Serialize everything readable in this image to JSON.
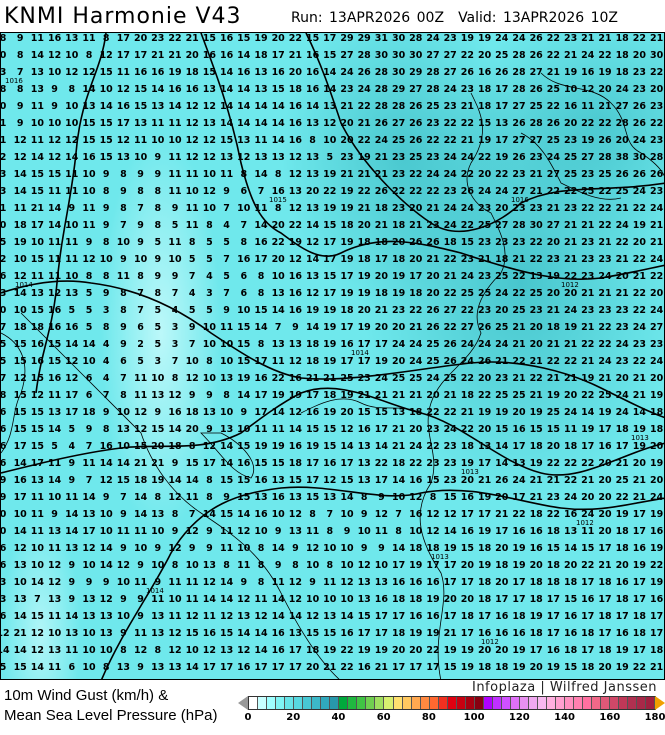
{
  "header": {
    "title": "KNMI Harmonie V43",
    "run": "Run: 13APR2026 00Z",
    "valid": "Valid: 13APR2026 10Z"
  },
  "map": {
    "field": "10m wind gust",
    "gust_rows": [
      "8 9 11 16 13 11 8 17 20 23 22 21 15 16 15 19 20 22 15 17 29 29 31 30 28 24 23 19 19 24 24 26 22 23 21 21 18 22 21",
      "0 8 14 12 10 8 12 17 17 21 21 20 16 16 14 18 17 21 16 15 27 28 30 30 30 27 27 22 20 25 28 26 22 21 24 22 18 20 30",
      "3 7 13 10 12 12 15 11 16 16 19 18 15 14 16 13 16 20 16 14 24 26 28 30 29 28 27 26 16 26 28 27 21 19 16 19 18 23 22",
      "8 8 13 9 8 14 10 12 15 14 16 16 13 14 14 13 15 18 16 14 23 24 28 29 27 28 24 23 18 17 28 26 25 10 12 20 24 23 20",
      "0 9 11 9 10 13 14 16 15 13 14 12 12 14 14 14 14 16 14 13 21 22 28 28 26 25 23 21 18 17 27 25 22 16 11 21 27 26 23",
      "1 9 10 10 10 15 15 17 13 11 11 12 13 14 14 14 14 16 13 12 20 21 26 27 26 23 22 22 15 13 26 28 26 20 22 22 28 26 22",
      "1 12 11 12 12 15 15 12 11 10 10 12 12 15 13 11 14 16 8 10 20 22 24 25 26 22 22 21 19 17 27 27 25 23 19 26 20 24 23",
      "2 12 14 12 14 16 15 13 10 9 11 12 12 13 12 13 13 12 13 5 23 19 21 23 25 23 24 24 22 19 26 23 24 25 27 28 38 30 28",
      "3 14 15 15 11 10 9 8 9 9 11 11 10 11 8 14 8 12 13 19 21 21 21 23 22 24 24 22 20 22 23 21 27 25 23 25 26 26 26",
      "3 14 15 11 11 10 8 9 8 8 11 10 12 9 6 7 16 13 20 22 19 22 26 22 22 22 23 26 24 24 27 21 22 22 25 22 25 24 23",
      "1 11 21 14 9 11 9 8 7 8 9 11 10 7 10 11 8 12 13 19 19 21 18 23 20 21 24 24 23 20 23 23 21 23 22 22 21 22 24",
      "0 18 17 14 10 11 9 7 9 8 5 11 8 4 7 14 20 22 14 15 18 20 21 18 21 23 24 22 25 27 28 30 27 21 21 22 24 19 21",
      "5 19 10 11 11 9 8 10 9 5 11 8 5 5 8 16 22 19 12 17 19 18 18 20 26 26 18 15 23 23 23 22 20 21 23 21 22 20 21",
      "2 10 15 11 11 12 10 9 10 9 10 5 5 7 16 17 20 12 14 17 19 18 17 18 20 21 22 23 21 18 21 22 23 21 23 23 21 22 24",
      "6 12 11 11 10 8 8 11 8 9 9 7 4 5 6 8 10 16 13 15 17 19 20 19 17 20 21 24 23 25 22 13 19 22 23 24 20 21 22",
      "3 14 13 12 13 5 9 8 7 8 7 4 3 7 6 8 13 16 12 17 19 19 18 19 18 20 22 25 25 24 22 25 20 20 21 21 21 22 20",
      "0 10 15 16 5 5 3 8 7 5 4 5 5 9 10 15 14 16 19 19 18 20 21 23 22 26 27 22 23 20 25 23 21 24 23 23 23 22 24",
      "7 18 18 16 16 5 8 9 6 5 3 9 10 11 15 14 7 9 14 19 17 19 20 20 21 26 22 27 26 25 21 20 18 19 21 22 23 24 27",
      "5 15 16 15 14 14 4 9 2 5 3 7 10 10 15 8 13 13 18 19 16 17 17 24 24 25 26 24 24 24 21 20 21 21 22 22 24 23 23",
      "5 15 16 15 12 10 4 6 5 3 7 10 8 10 15 17 11 12 18 19 17 17 19 20 24 25 26 24 26 21 22 21 22 22 21 24 23 22 24",
      "7 12 15 16 12 6 4 7 11 10 8 12 10 13 19 16 22 16 21 21 25 23 24 25 25 24 25 22 20 23 21 22 21 21 19 21 20 21 20",
      "8 15 12 11 17 6 7 8 11 13 12 9 9 8 14 17 19 19 17 18 19 21 21 21 21 20 21 18 22 25 25 21 19 20 22 25 24 21 19",
      "6 15 15 13 17 18 9 10 12 9 16 18 13 10 9 17 14 12 16 19 20 15 15 13 18 22 22 21 19 19 20 19 25 24 14 19 24 14 18",
      "6 15 15 14 5 9 8 13 12 15 14 20 9 13 10 11 11 14 15 15 12 16 17 21 20 23 24 22 20 15 16 15 15 11 19 17 18 19 18",
      "6 17 15 5 4 7 16 10 15 20 18 8 12 14 15 19 19 16 19 15 14 13 14 21 24 22 23 18 13 14 17 18 20 18 17 16 17 19 20",
      "6 14 17 11 9 11 14 14 21 21 9 15 17 14 16 15 15 18 17 16 17 13 22 18 22 23 23 19 17 14 13 19 22 22 22 20 21 20 19",
      "9 16 13 14 9 7 12 15 18 19 14 14 8 15 15 16 13 15 17 12 15 13 17 14 16 15 23 20 21 26 24 21 21 22 21 20 25 21 20",
      "9 17 11 10 11 14 9 7 14 8 12 11 8 9 15 13 16 13 15 13 14 8 9 10 12 8 15 16 19 20 17 21 23 24 20 20 22 21 24",
      "0 10 11 9 14 13 10 9 14 13 8 7 14 15 14 16 10 12 8 7 10 9 12 7 16 12 12 17 17 21 22 18 22 16 24 20 19 17 19",
      "0 14 11 13 14 17 10 11 11 10 9 12 9 11 12 10 9 13 11 8 9 10 11 8 10 12 14 16 19 17 16 16 18 13 11 20 18 17 16",
      "6 12 10 11 13 12 14 9 10 9 12 9 9 11 10 8 14 9 12 10 10 9 9 14 18 18 19 15 18 20 19 16 15 14 15 17 18 16 19",
      "6 13 10 12 9 10 14 12 9 10 8 10 13 8 11 8 9 8 10 8 10 12 10 17 19 17 17 20 19 18 19 20 18 20 22 21 20 19 22",
      "3 10 14 12 9 9 9 10 11 9 11 11 12 14 9 8 11 12 9 11 12 13 13 16 16 16 17 17 18 20 17 18 18 18 17 18 16 17 19",
      "3 13 7 13 9 13 12 9 9 11 10 11 14 14 12 11 14 12 10 10 10 13 16 18 18 19 20 20 18 17 17 18 17 15 16 17 18 17 16",
      "6 14 15 11 14 13 13 10 9 13 11 12 11 12 13 12 14 14 12 13 14 15 17 17 16 16 17 18 17 16 18 19 17 16 17 18 17 18 17",
      "12 21 12 10 13 10 13 9 11 13 12 15 16 15 14 14 16 13 15 15 16 17 17 18 19 19 21 17 16 16 16 18 17 16 18 17 16 18 17",
      "14 14 12 13 11 10 10 8 12 8 12 10 12 13 12 14 16 17 18 19 22 19 19 20 20 22 19 19 20 20 19 17 16 18 17 18 19 17 18",
      "5 15 14 11 6 10 8 13 9 13 13 14 17 17 16 17 17 17 20 21 22 16 21 17 17 17 15 19 18 18 19 20 19 15 18 20 19 22 21"
    ],
    "isobar_labels": [
      "1015",
      "1016",
      "1016",
      "1014",
      "1014",
      "1013",
      "1013",
      "1012",
      "1012",
      "1012",
      "1014",
      "1013"
    ],
    "watermark": "Infoplaza | Wilfred Janssen"
  },
  "legend": {
    "title_line1": "10m Wind Gust (km/h) &",
    "title_line2": "Mean Sea Level Pressure (hPa)",
    "ticks": [
      "0",
      "20",
      "40",
      "60",
      "80",
      "100",
      "120",
      "140",
      "160",
      "180"
    ],
    "min": 0,
    "max": 180,
    "colors": [
      "#ffffff",
      "#c8ffff",
      "#a0ffff",
      "#80f4f4",
      "#68e4e8",
      "#58d8e0",
      "#48c8d4",
      "#3cb8c8",
      "#30a8bc",
      "#2898ac",
      "#00a83c",
      "#20b840",
      "#40c444",
      "#70d050",
      "#a0e060",
      "#d8f070",
      "#ffe070",
      "#ffc860",
      "#ffa850",
      "#ff8840",
      "#ff6830",
      "#f03020",
      "#e00010",
      "#c80010",
      "#a80010",
      "#880010",
      "#b000ff",
      "#c030ff",
      "#d050ff",
      "#e070f8",
      "#e890f0",
      "#f0a8f0",
      "#f8b8f0",
      "#ffb0e0",
      "#ffa0d0",
      "#ff90c0",
      "#ff80b0",
      "#ff70a0",
      "#f06888",
      "#e05878",
      "#d04868",
      "#c03858",
      "#b03050",
      "#a82848",
      "#a02040"
    ],
    "under_color": "#999999",
    "over_color": "#f0a000"
  }
}
